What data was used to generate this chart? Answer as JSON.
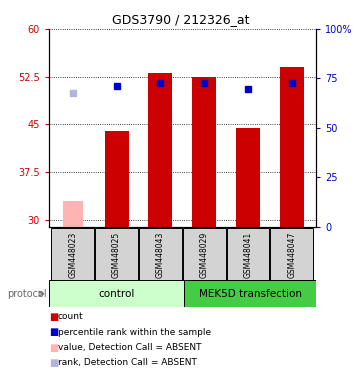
{
  "title": "GDS3790 / 212326_at",
  "samples": [
    "GSM448023",
    "GSM448025",
    "GSM448043",
    "GSM448029",
    "GSM448041",
    "GSM448047"
  ],
  "bar_values": [
    null,
    44.0,
    53.0,
    52.5,
    44.5,
    54.0
  ],
  "bar_absent_values": [
    33.0,
    null,
    null,
    null,
    null,
    null
  ],
  "blue_square_values": [
    null,
    51.0,
    51.5,
    51.5,
    50.5,
    51.5
  ],
  "blue_square_absent_values": [
    50.0,
    null,
    null,
    null,
    null,
    null
  ],
  "bar_color": "#cc0000",
  "bar_absent_color": "#ffb3b3",
  "blue_color": "#0000cc",
  "blue_absent_color": "#b3b3dd",
  "ylim_left": [
    29,
    60
  ],
  "ylim_right": [
    0,
    100
  ],
  "yticks_left": [
    30,
    37.5,
    45,
    52.5,
    60
  ],
  "yticks_right": [
    0,
    25,
    50,
    75,
    100
  ],
  "ytick_labels_left": [
    "30",
    "37.5",
    "45",
    "52.5",
    "60"
  ],
  "ytick_labels_right": [
    "0",
    "25",
    "50",
    "75",
    "100%"
  ],
  "ctrl_color": "#ccffcc",
  "mek_color": "#44cc44",
  "sample_box_color": "#d3d3d3",
  "bar_width": 0.55,
  "square_size": 5,
  "legend_items": [
    {
      "color": "#cc0000",
      "label": "count"
    },
    {
      "color": "#0000cc",
      "label": "percentile rank within the sample"
    },
    {
      "color": "#ffb3b3",
      "label": "value, Detection Call = ABSENT"
    },
    {
      "color": "#b3b3dd",
      "label": "rank, Detection Call = ABSENT"
    }
  ]
}
